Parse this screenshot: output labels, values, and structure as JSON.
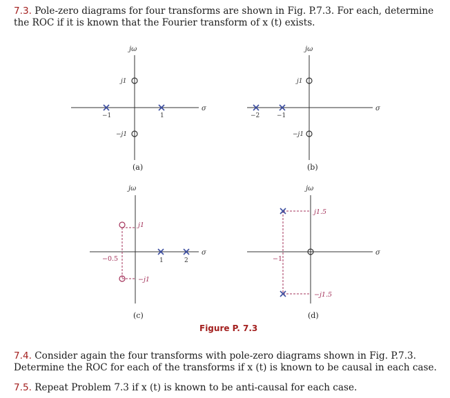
{
  "problem_7_3": {
    "number": "7.3.",
    "text": "Pole-zero diagrams for four transforms are shown in Fig. P.7.3. For each, determine the ROC if it is known that the Fourier transform of x (t) exists."
  },
  "figure": {
    "caption": "Figure P. 7.3",
    "axis_imag": "jω",
    "axis_real": "σ",
    "panels": {
      "a": {
        "caption": "(a)",
        "tick_left": "−1",
        "tick_right": "1",
        "zero_top": "j1",
        "zero_bottom": "−j1"
      },
      "b": {
        "caption": "(b)",
        "tick_left": "−2",
        "tick_right": "−1",
        "zero_top": "j1",
        "zero_bottom": "−j1"
      },
      "c": {
        "caption": "(c)",
        "tick_left": "−0.5",
        "tick_mid": "1",
        "tick_right": "2",
        "top_label": "j1",
        "bottom_label": "−j1"
      },
      "d": {
        "caption": "(d)",
        "tick_left": "−1",
        "top_label": "j1.5",
        "bottom_label": "−j1.5"
      }
    }
  },
  "problem_7_4": {
    "number": "7.4.",
    "text": "Consider again the four transforms with pole-zero diagrams shown in Fig. P.7.3. Determine the ROC for each of the transforms if x (t) is known to be causal in each case."
  },
  "problem_7_5": {
    "number": "7.5.",
    "text": "Repeat Problem 7.3 if x (t) is known to be anti-causal for each case."
  },
  "colors": {
    "pole": "#3c4ea0",
    "zero": "#333333",
    "accent": "#a3201f",
    "dashed": "#a3325a"
  }
}
